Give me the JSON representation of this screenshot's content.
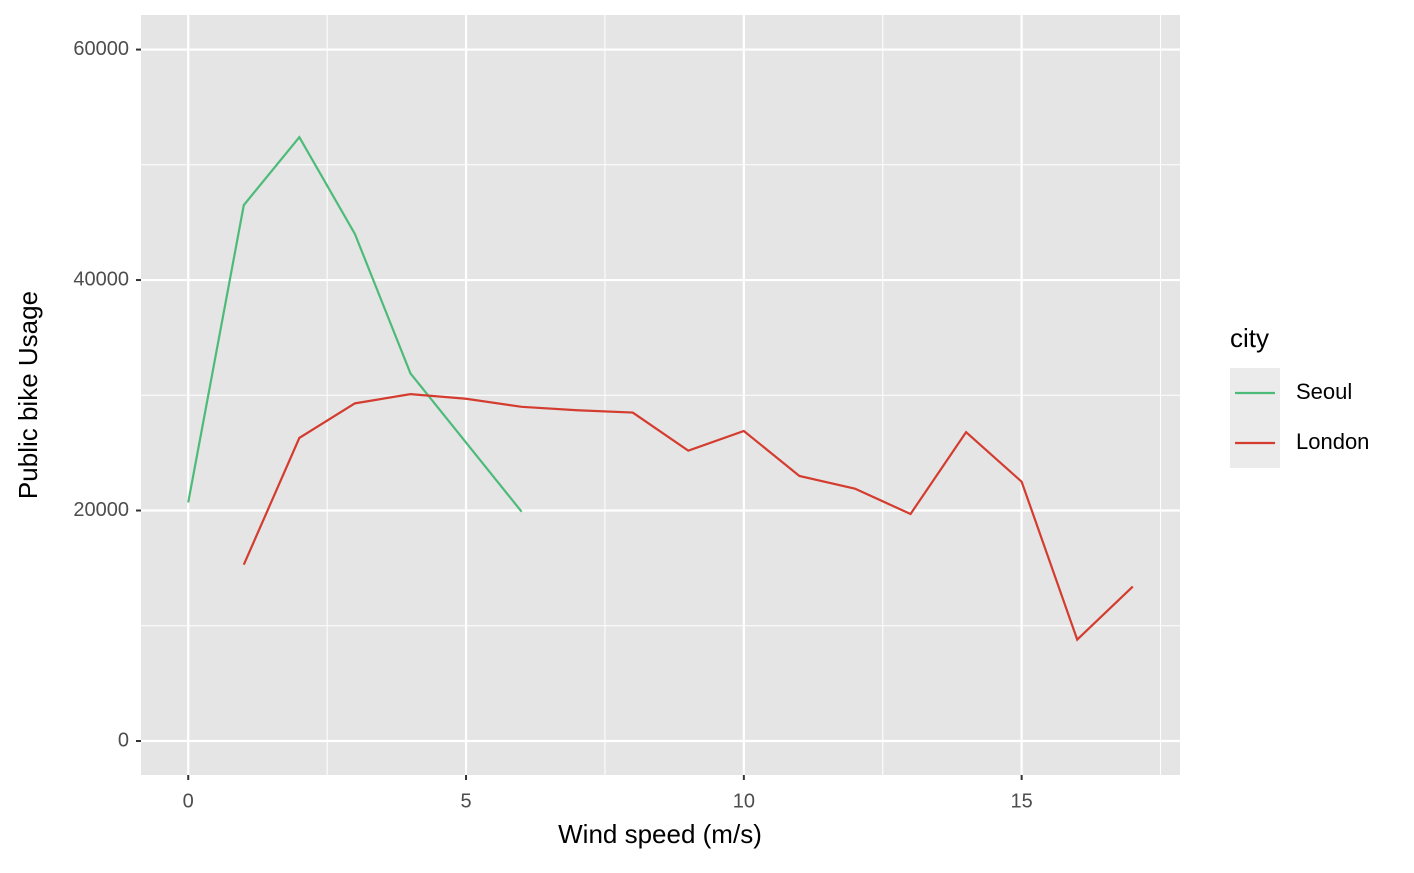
{
  "chart_data": {
    "type": "line",
    "x_label": "Wind speed (m/s)",
    "y_label": "Public bike Usage",
    "legend_title": "city",
    "legend_position": "right",
    "grid": true,
    "xlim": [
      -0.85,
      17.85
    ],
    "ylim": [
      -2950,
      63000
    ],
    "xticks": [
      0,
      5,
      10,
      15
    ],
    "yticks": [
      0,
      20000,
      40000,
      60000
    ],
    "x_minor_ticks": [
      2.5,
      7.5,
      12.5,
      17.5
    ],
    "y_minor_ticks": [
      10000,
      30000,
      50000
    ],
    "series": [
      {
        "name": "Seoul",
        "color": "#4dbb78",
        "x": [
          0,
          1,
          2,
          3,
          4,
          5,
          6
        ],
        "values": [
          20700,
          46500,
          52400,
          44000,
          31900,
          25900,
          19900
        ]
      },
      {
        "name": "London",
        "color": "#d33c2f",
        "x": [
          1,
          2,
          3,
          4,
          5,
          6,
          7,
          8,
          9,
          10,
          11,
          12,
          13,
          14,
          15,
          16,
          17
        ],
        "values": [
          15300,
          26300,
          29300,
          30100,
          29700,
          29000,
          28700,
          28500,
          25200,
          26900,
          23000,
          21900,
          19700,
          26800,
          22500,
          8800,
          13400
        ]
      }
    ]
  }
}
